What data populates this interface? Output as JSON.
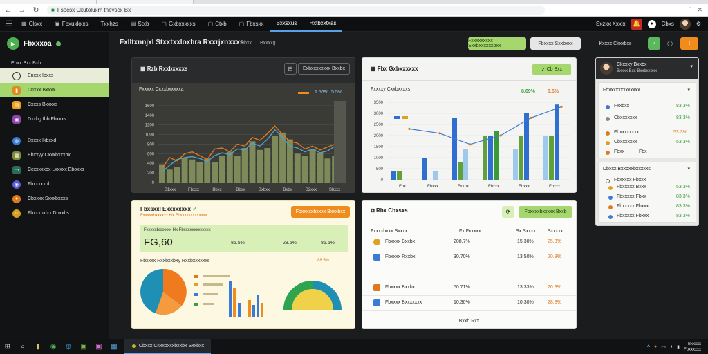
{
  "browser": {
    "url": "Fsocsx Ckutoluxm tnevscx Bx",
    "right_icons": [
      "⋮",
      "✕"
    ]
  },
  "nav": {
    "items": [
      {
        "label": "Clsxx",
        "icon": "chart-icon"
      },
      {
        "label": "Fbxuxkxxs",
        "icon": "doc-icon"
      },
      {
        "label": "Txxhzs",
        "icon": "grid-icon"
      },
      {
        "label": "Stxb",
        "icon": "grid-icon"
      },
      {
        "label": "Gxbxxxxxs",
        "icon": "box-icon"
      },
      {
        "label": "Ctxb",
        "icon": "box-icon"
      },
      {
        "label": "Fbxsxx",
        "icon": "box-icon"
      },
      {
        "label": "Bxksxus",
        "icon": "none",
        "active": true
      },
      {
        "label": "Hxtbxxtxas",
        "icon": "none",
        "active": true
      }
    ],
    "right_label": "Sxzxx Xxxlx",
    "right_label2": "Cbxs"
  },
  "sidebar": {
    "brand": "Fbxxxoa",
    "section": "Ebxx Bxx Bxb",
    "items": [
      {
        "label": "Enxxx Ibxxs",
        "color": "#333"
      },
      {
        "label": "Cnxxx Bxxxx",
        "color": "#e08a1e"
      },
      {
        "label": "Cxxxs Bxxxxs",
        "color": "#f0a020"
      },
      {
        "label": "Dxxbg Ibb Fbxxxs",
        "color": "#8e44ad"
      },
      {
        "label": "Dxxxx Ikbxxd",
        "color": "#3a7bd5"
      },
      {
        "label": "Ebxxyy Cxxxbxxxhx",
        "color": "#7c8a3a"
      },
      {
        "label": "Ccxxxxxbx Lxxxxx Eboxxs",
        "color": "#2a6b5a"
      },
      {
        "label": "Fbxxxxxbb",
        "color": "#5b5bd6"
      },
      {
        "label": "Cbxxxx Sxxxbxxxs",
        "color": "#e0781e"
      },
      {
        "label": "Fbxxxbxlxx Dbxxbs",
        "color": "#d4a020"
      }
    ]
  },
  "header": {
    "title": "Fxlltxnnjxl Stxxtxxloxhra Rxxrjxnxxxs",
    "sub1": "Hbxx",
    "sub2": "Bxxxxg",
    "btn1": "Fxxxxxxxxx Sxxbxxxxxxbxx",
    "btn2": "Fbxxxx Sxxbxxx",
    "btn3": "Kxxxx Ckxxbxs"
  },
  "panels": {
    "p1": {
      "title": "Rzb Rxxbxxxxs",
      "btn": "Exbxxxxxxxx Bxxbx",
      "sub": "Fxxxxx Ccxxbxxxxxa",
      "legend": [
        "1.56%",
        "5.5%"
      ]
    },
    "p2": {
      "title": "Fbx Gxbxxxxxx",
      "btn": "Cb Bxx",
      "sub": "Fxxxxy Cxxbxxxxs",
      "legend": [
        "8.69%",
        "8.5%"
      ]
    },
    "p3": {
      "title": "Fbxsxxl Exxxxxxxx",
      "btn": "Fbxxxxxbxxxx Bxxxbxx",
      "sub": "Fxxxxxbxxxxxx Hx Fbxxxxxxxxxxxxx",
      "big": "FG,60",
      "v1": "85.5%",
      "v2": "28.5%",
      "v3": "85.5%",
      "sub2": "Fbxxxx Rxxbxxbxy Rxxbxxxxxxs",
      "legend_val": "88.5%"
    },
    "p4": {
      "title": "Rbx Cbxsxs",
      "btn": "Fbxxxxbxxxxx Bxxb",
      "col1": "Fxxxxbxxx Sxxxx",
      "col2": "Fx Fxxxxx",
      "col3": "Sx Sxxxx",
      "col4": "Sxxxxx",
      "footer": "Bxxb Rxx"
    }
  },
  "table": [
    {
      "name": "Fbxxxx Bxxbx",
      "c2": "208.7%",
      "c3": "15.30%",
      "c4": "25.3%",
      "icon": "#e0a020"
    },
    {
      "name": "Fbxxxx Rxxbx",
      "c2": "30.70%",
      "c3": "13.50%",
      "c4": "20.3%",
      "icon": "#3a7bd5"
    },
    {
      "name": "Fbxxxx Bxxbx",
      "c2": "50.71%",
      "c3": "13.33%",
      "c4": "20.3%",
      "icon": "#e0781e"
    },
    {
      "name": "Fbxxxx Bxxxxxxx",
      "c2": "10.30%",
      "c3": "10.30%",
      "c4": "28.3%",
      "icon": "#3a7bd5"
    }
  ],
  "right_panel": {
    "title": "Ckxxxy Bxxbx",
    "subtitle": "Bxxxx Bxx Bxxbxxbxx",
    "sec1": "Fbxxxxxxxxxxxxx",
    "sec2": "Dbxxx Bxxbxxbxxxxxs",
    "rows1": [
      {
        "label": "Fxxbxx",
        "val": "83.3%",
        "color": "#3a7bd5"
      },
      {
        "label": "Cbxxxxxxx",
        "val": "83.3%",
        "color": "#888"
      },
      {
        "label": "Fbxxxxxxxx",
        "val": "53.3%",
        "color": "#e0781e"
      },
      {
        "label": "Cbxxxxxxx",
        "val": "53.3%",
        "color": "#e0a020"
      },
      {
        "label": "Fbxx",
        "val": "Fbx",
        "color": "#e0781e"
      }
    ],
    "rows2": [
      {
        "label": "Fbxxxxx Fbxxx",
        "val": "53.3%",
        "color": "#3a7bd5"
      },
      {
        "label": "Fbxxxxx Bxxx",
        "val": "83.3%",
        "color": "#e0a020"
      },
      {
        "label": "Fbxxxxx Fbxx",
        "val": "83.3%",
        "color": "#e0781e"
      },
      {
        "label": "Fbxxxxx Fbxxx",
        "val": "83.3%",
        "color": "#3a7bd5"
      }
    ]
  },
  "taskbar": {
    "app": "Cbxxx Ckxxbxxxbxxbx Sxxbxx",
    "time": "Bxxxxx",
    "date": "Fbxxxxxx"
  },
  "chart_data": [
    {
      "type": "bar",
      "categories": [
        "B1xxx",
        "Fbxxx",
        "Bbxx",
        "Bbxx",
        "Bxbxx",
        "Bxbx",
        "B2xxx",
        "Sbxxx"
      ],
      "values": [
        450,
        600,
        800,
        700,
        900,
        1000,
        650,
        580
      ],
      "ylim": [
        0,
        1700
      ],
      "yticks": [
        "0",
        "200",
        "400",
        "600",
        "800",
        "1000",
        "1200",
        "1400",
        "1600"
      ]
    },
    {
      "type": "bar",
      "categories": [
        "Fbx",
        "Fbxxx",
        "Fxxbx",
        "Fbxxx",
        "Fbxxx",
        "Fbxxx"
      ],
      "ylim": [
        0,
        3500
      ],
      "yticks": [
        "0",
        "500",
        "1000",
        "1500",
        "2000",
        "2500",
        "3000",
        "3500"
      ]
    }
  ]
}
